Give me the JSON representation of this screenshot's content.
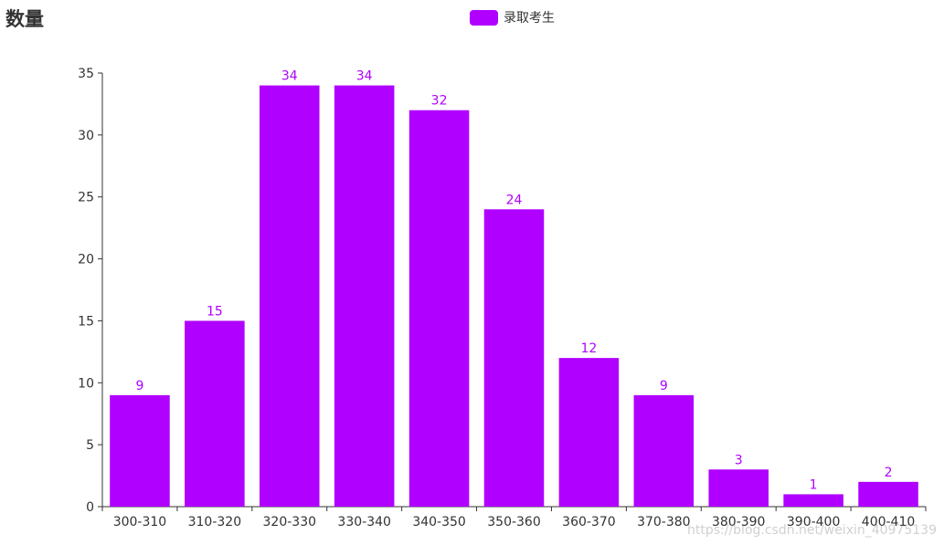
{
  "chart_data": {
    "type": "bar",
    "title": "数量",
    "categories": [
      "300-310",
      "310-320",
      "320-330",
      "330-340",
      "340-350",
      "350-360",
      "360-370",
      "370-380",
      "380-390",
      "390-400",
      "400-410"
    ],
    "series": [
      {
        "name": "录取考生",
        "values": [
          9,
          15,
          34,
          34,
          32,
          24,
          12,
          9,
          3,
          1,
          2
        ]
      }
    ],
    "ylim": [
      0,
      35
    ],
    "yticks": [
      0,
      5,
      10,
      15,
      20,
      25,
      30,
      35
    ],
    "legend_position": "top-center",
    "grid": false,
    "bar_color": "#b000ff",
    "label_color": "#b000ff",
    "axis_color": "#333333"
  },
  "watermark": "https://blog.csdn.net/weixin_40975139"
}
